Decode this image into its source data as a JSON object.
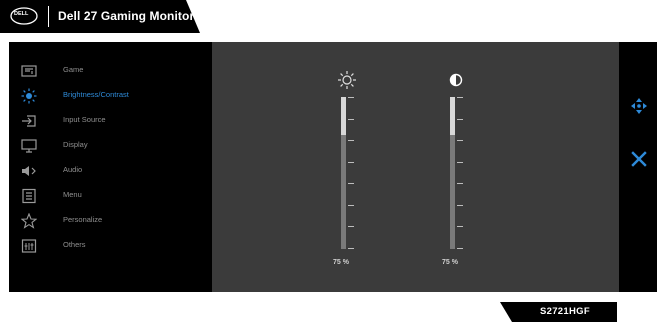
{
  "header": {
    "brand": "DELL",
    "title": "Dell 27 Gaming Monitor"
  },
  "menu": {
    "items": [
      {
        "label": "Game",
        "icon": "game-icon"
      },
      {
        "label": "Brightness/Contrast",
        "icon": "brightness-icon",
        "active": true
      },
      {
        "label": "Input Source",
        "icon": "input-source-icon"
      },
      {
        "label": "Display",
        "icon": "display-icon"
      },
      {
        "label": "Audio",
        "icon": "speaker-icon"
      },
      {
        "label": "Menu",
        "icon": "menu-icon"
      },
      {
        "label": "Personalize",
        "icon": "star-icon"
      },
      {
        "label": "Others",
        "icon": "others-icon"
      }
    ]
  },
  "controls": {
    "brightness": {
      "value": 75,
      "value_label": "75 %",
      "icon": "sun-icon"
    },
    "contrast": {
      "value": 75,
      "value_label": "75 %",
      "icon": "contrast-icon"
    }
  },
  "side": {
    "navigate_icon": "navigate-icon",
    "exit_icon": "close-icon"
  },
  "footer": {
    "model": "S2721HGF"
  },
  "colors": {
    "accent": "#2e8ad8",
    "panel": "#3b3b3b",
    "osd_bg": "#000000"
  }
}
